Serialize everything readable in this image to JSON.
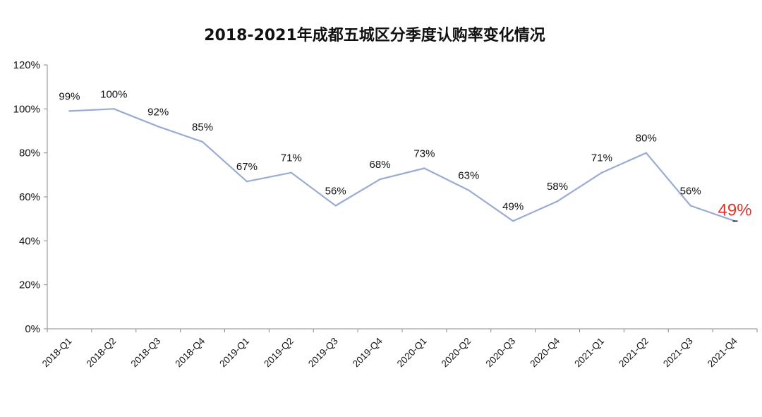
{
  "chart_data": {
    "type": "line",
    "title": "2018-2021年成都五城区分季度认购率变化情况",
    "xlabel": "",
    "ylabel": "",
    "ylim": [
      0,
      120
    ],
    "yticks": [
      "0%",
      "20%",
      "40%",
      "60%",
      "80%",
      "100%",
      "120%"
    ],
    "ytick_values": [
      0,
      20,
      40,
      60,
      80,
      100,
      120
    ],
    "grid": false,
    "legend": "none",
    "categories": [
      "2018-Q1",
      "2018-Q2",
      "2018-Q3",
      "2018-Q4",
      "2019-Q1",
      "2019-Q2",
      "2019-Q3",
      "2019-Q4",
      "2020-Q1",
      "2020-Q2",
      "2020-Q3",
      "2020-Q4",
      "2021-Q1",
      "2021-Q2",
      "2021-Q3",
      "2021-Q4"
    ],
    "series": [
      {
        "values": [
          99,
          100,
          92,
          85,
          67,
          71,
          56,
          68,
          73,
          63,
          49,
          58,
          71,
          80,
          56,
          49
        ],
        "labels": [
          "99%",
          "100%",
          "92%",
          "85%",
          "67%",
          "71%",
          "56%",
          "68%",
          "73%",
          "63%",
          "49%",
          "58%",
          "71%",
          "80%",
          "56%",
          "49%"
        ],
        "color": "#9aabd4"
      }
    ],
    "highlight_index": 15,
    "highlight_color": "#d9372b"
  }
}
